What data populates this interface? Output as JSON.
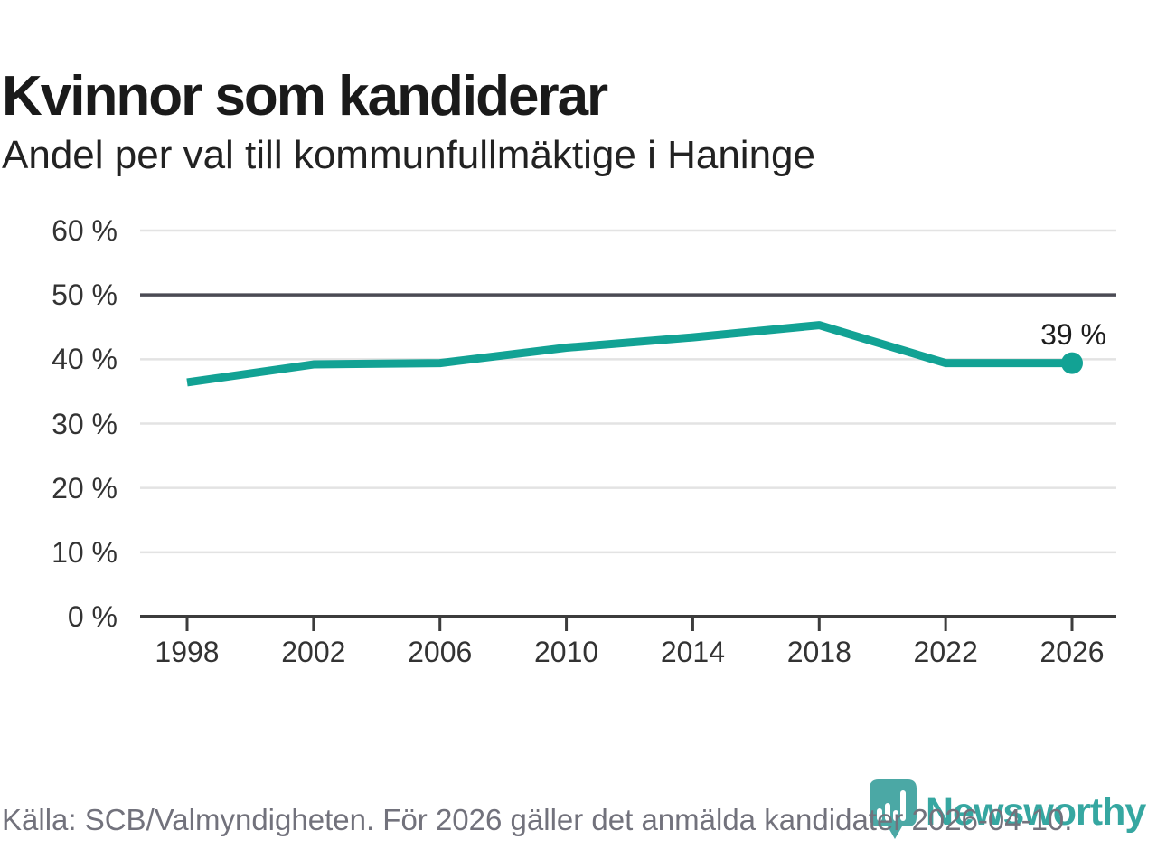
{
  "title": "Kvinnor som kandiderar",
  "subtitle": "Andel per val till kommunfullmäktige i Haninge",
  "chart_data": {
    "type": "line",
    "x": [
      1998,
      2002,
      2006,
      2010,
      2014,
      2018,
      2022,
      2026
    ],
    "xtick_labels": [
      "1998",
      "2002",
      "2006",
      "2010",
      "2014",
      "2018",
      "2022",
      "2026"
    ],
    "values": [
      36.4,
      39.2,
      39.4,
      41.8,
      43.4,
      45.3,
      39.4,
      39.4
    ],
    "unit": "%",
    "ylim": [
      0,
      60
    ],
    "ytick_values": [
      0,
      10,
      20,
      30,
      40,
      50,
      60
    ],
    "ytick_labels": [
      "0 %",
      "10 %",
      "20 %",
      "30 %",
      "40 %",
      "50 %",
      "60 %"
    ],
    "grid": true,
    "highlight_gridline_value": 50,
    "legend": "none",
    "end_label": "39 %",
    "line_color": "#12a294",
    "grid_color": "#e3e3e3",
    "highlight_grid_color": "#4b4b54",
    "axis_color": "#3c3c3c"
  },
  "footer": {
    "source_text": "Källa: SCB/Valmyndigheten. För 2026 gäller det anmälda kandidater 2026-04-10."
  },
  "branding": {
    "wordmark": "Newsworthy",
    "icon": "speech-bubble-bar-chart",
    "wordmark_color": "#36a7a1",
    "icon_color": "#4ba8a5"
  }
}
